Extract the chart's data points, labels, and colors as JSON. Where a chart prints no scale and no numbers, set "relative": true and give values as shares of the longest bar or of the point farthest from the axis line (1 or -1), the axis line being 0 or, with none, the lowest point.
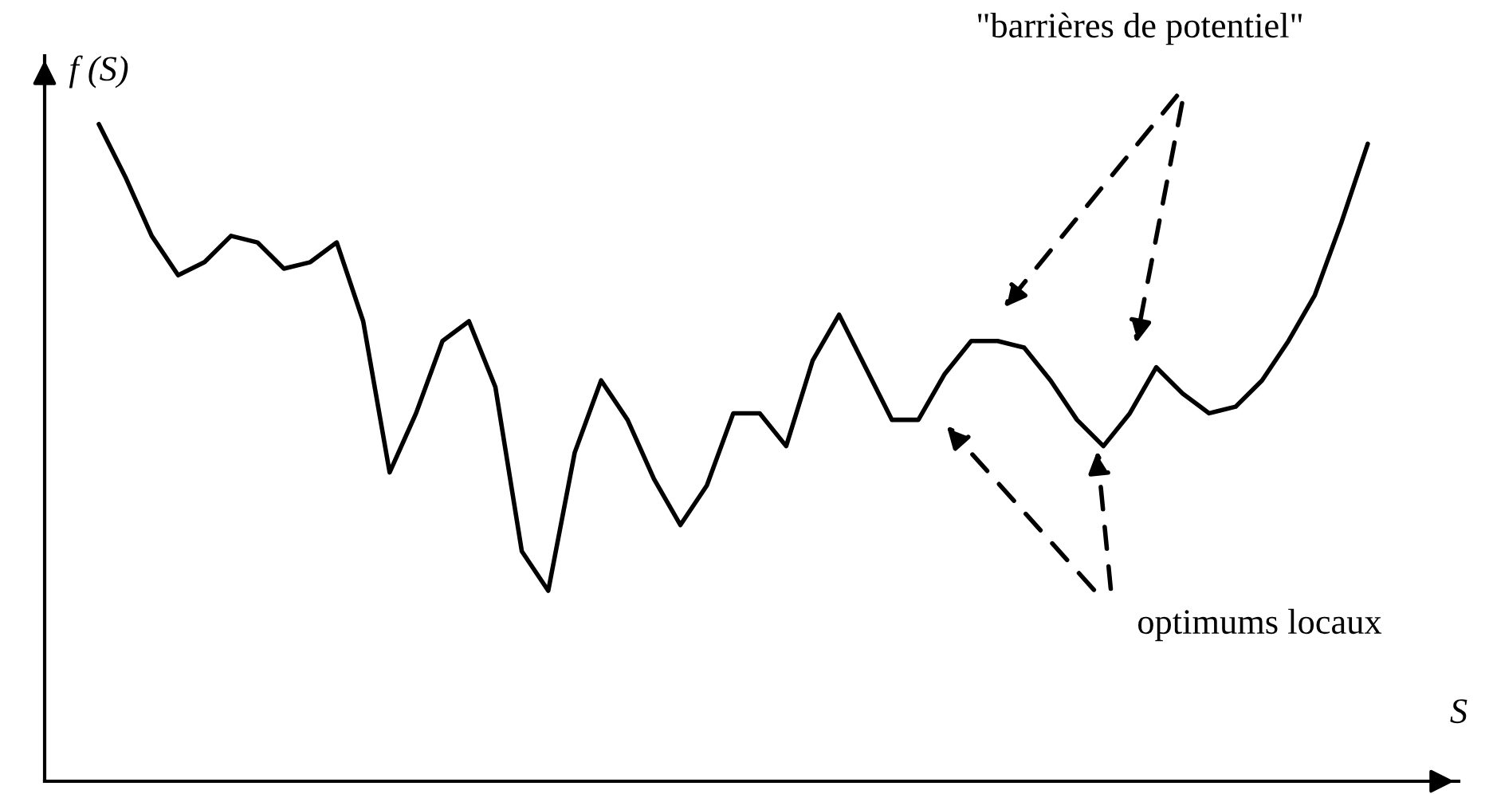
{
  "chart_data": {
    "type": "line",
    "relative": true,
    "xlabel": "S",
    "ylabel": "f (S)",
    "color": "#000000",
    "categories": [
      null,
      null,
      null,
      null,
      null,
      null,
      null,
      null,
      null,
      null,
      null,
      null,
      null,
      null,
      null,
      null,
      null,
      null,
      null,
      null,
      null,
      null,
      null,
      null,
      null,
      null,
      null,
      null,
      null,
      null,
      null,
      null,
      null,
      null,
      null,
      null,
      null,
      null,
      null,
      null,
      null,
      null,
      null,
      null,
      null,
      null,
      null,
      null,
      null
    ],
    "values": [
      1.0,
      0.92,
      0.83,
      0.77,
      0.79,
      0.83,
      0.82,
      0.78,
      0.79,
      0.82,
      0.7,
      0.47,
      0.56,
      0.67,
      0.7,
      0.6,
      0.35,
      0.29,
      0.5,
      0.61,
      0.55,
      0.46,
      0.39,
      0.45,
      0.56,
      0.56,
      0.51,
      0.64,
      0.71,
      0.63,
      0.55,
      0.55,
      0.62,
      0.67,
      0.67,
      0.66,
      0.61,
      0.55,
      0.51,
      0.56,
      0.63,
      0.59,
      0.56,
      0.57,
      0.61,
      0.67,
      0.74,
      0.85,
      0.97
    ],
    "annotations": [
      "\"barrières de potentiel\"",
      "optimums locaux"
    ]
  }
}
